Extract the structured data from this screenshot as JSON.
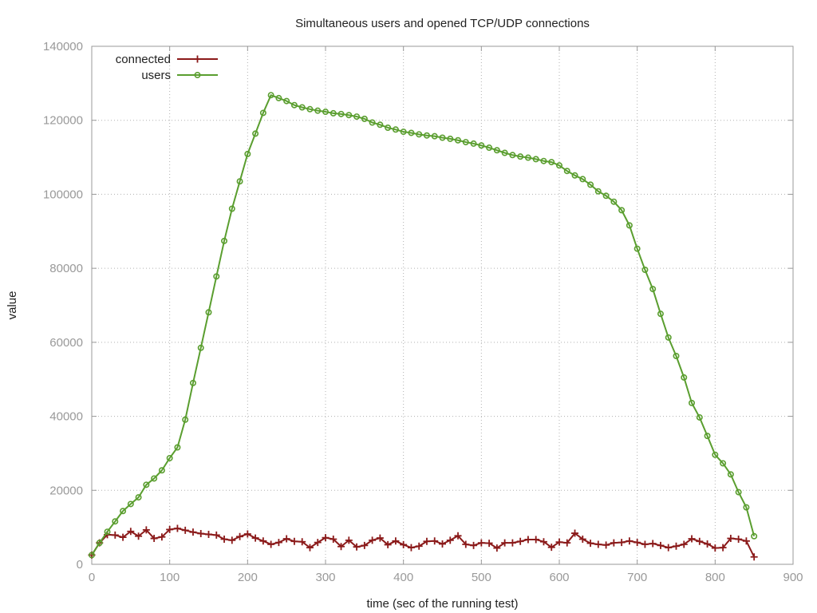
{
  "chart_data": {
    "type": "line",
    "title": "Simultaneous users and opened TCP/UDP connections",
    "xlabel": "time (sec of the running test)",
    "ylabel": "value",
    "xlim": [
      0,
      900
    ],
    "ylim": [
      0,
      140000
    ],
    "xticks": [
      0,
      100,
      200,
      300,
      400,
      500,
      600,
      700,
      800,
      900
    ],
    "yticks": [
      0,
      20000,
      40000,
      60000,
      80000,
      100000,
      120000,
      140000
    ],
    "grid": true,
    "legend_position": "top-left",
    "x": [
      0,
      10,
      20,
      30,
      40,
      50,
      60,
      70,
      80,
      90,
      100,
      110,
      120,
      130,
      140,
      150,
      160,
      170,
      180,
      190,
      200,
      210,
      220,
      230,
      240,
      250,
      260,
      270,
      280,
      290,
      300,
      310,
      320,
      330,
      340,
      350,
      360,
      370,
      380,
      390,
      400,
      410,
      420,
      430,
      440,
      450,
      460,
      470,
      480,
      490,
      500,
      510,
      520,
      530,
      540,
      550,
      560,
      570,
      580,
      590,
      600,
      610,
      620,
      630,
      640,
      650,
      660,
      670,
      680,
      690,
      700,
      710,
      720,
      730,
      740,
      750,
      760,
      770,
      780,
      790,
      800,
      810,
      820,
      830,
      840,
      850
    ],
    "series": [
      {
        "name": "connected",
        "color": "#8b1a1a",
        "marker": "plus",
        "values": [
          2500,
          5800,
          8000,
          7900,
          7300,
          8900,
          7600,
          9300,
          7000,
          7400,
          9400,
          9700,
          9200,
          8700,
          8300,
          8100,
          7900,
          6800,
          6500,
          7500,
          8200,
          7100,
          6300,
          5400,
          5900,
          6900,
          6200,
          6100,
          4500,
          5900,
          7200,
          6800,
          4800,
          6500,
          4700,
          5100,
          6500,
          7100,
          5300,
          6300,
          5300,
          4500,
          4900,
          6200,
          6300,
          5500,
          6500,
          7700,
          5400,
          5100,
          5800,
          5700,
          4400,
          5800,
          5800,
          6200,
          6700,
          6700,
          6100,
          4600,
          6000,
          5800,
          8400,
          6800,
          5700,
          5400,
          5200,
          5800,
          5900,
          6300,
          5900,
          5400,
          5600,
          5100,
          4500,
          4900,
          5400,
          6900,
          6200,
          5500,
          4400,
          4500,
          7000,
          6800,
          6300,
          2000
        ]
      },
      {
        "name": "users",
        "color": "#5a9e2f",
        "marker": "circle",
        "values": [
          2500,
          5800,
          8800,
          11600,
          14400,
          16300,
          18100,
          21500,
          23200,
          25400,
          28700,
          31600,
          39100,
          49000,
          58500,
          68100,
          77800,
          87400,
          96100,
          103500,
          110900,
          116400,
          122000,
          126800,
          126000,
          125200,
          124100,
          123500,
          123000,
          122600,
          122300,
          121900,
          121700,
          121400,
          121000,
          120400,
          119400,
          118800,
          118000,
          117500,
          116900,
          116600,
          116200,
          115900,
          115700,
          115300,
          115000,
          114600,
          114100,
          113700,
          113200,
          112600,
          111900,
          111200,
          110600,
          110200,
          109900,
          109500,
          109000,
          108700,
          107800,
          106300,
          105100,
          104100,
          102600,
          100800,
          99600,
          98000,
          95700,
          91600,
          85300,
          79600,
          74400,
          67700,
          61300,
          56300,
          50500,
          43600,
          39700,
          34700,
          29600,
          27300,
          24300,
          19500,
          15400,
          7600
        ]
      }
    ]
  }
}
